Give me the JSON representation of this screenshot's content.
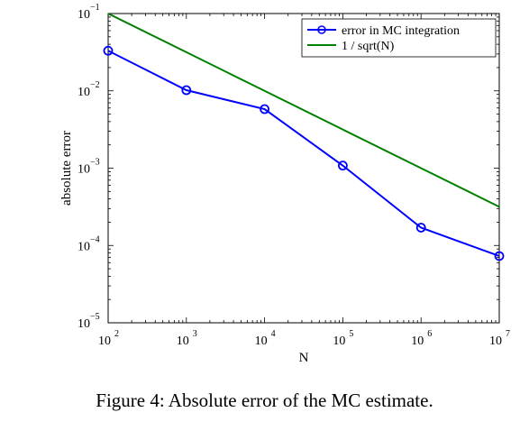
{
  "chart_data": {
    "type": "line",
    "xscale": "log",
    "yscale": "log",
    "x": [
      100,
      1000,
      10000,
      100000,
      1000000,
      10000000
    ],
    "xlim": [
      100,
      10000000
    ],
    "ylim": [
      1e-05,
      0.1
    ],
    "xlabel": "N",
    "ylabel": "absolute error",
    "xticks": [
      {
        "base": "10",
        "exp": "2"
      },
      {
        "base": "10",
        "exp": "3"
      },
      {
        "base": "10",
        "exp": "4"
      },
      {
        "base": "10",
        "exp": "5"
      },
      {
        "base": "10",
        "exp": "6"
      },
      {
        "base": "10",
        "exp": "7"
      }
    ],
    "yticks": [
      {
        "base": "10",
        "exp": "−1"
      },
      {
        "base": "10",
        "exp": "−2"
      },
      {
        "base": "10",
        "exp": "−3"
      },
      {
        "base": "10",
        "exp": "−4"
      },
      {
        "base": "10",
        "exp": "−5"
      }
    ],
    "legend_position": "top-right",
    "series": [
      {
        "name": "error in MC integration",
        "color": "#0000ff",
        "marker": "circle",
        "values": [
          0.033,
          0.0102,
          0.0058,
          0.00108,
          0.00017,
          7.3e-05
        ]
      },
      {
        "name": "1 / sqrt(N)",
        "color": "#008000",
        "marker": "none",
        "values": [
          0.1,
          0.0316,
          0.01,
          0.00316,
          0.001,
          0.000316
        ]
      }
    ]
  },
  "caption": "Figure 4: Absolute error of the MC estimate."
}
